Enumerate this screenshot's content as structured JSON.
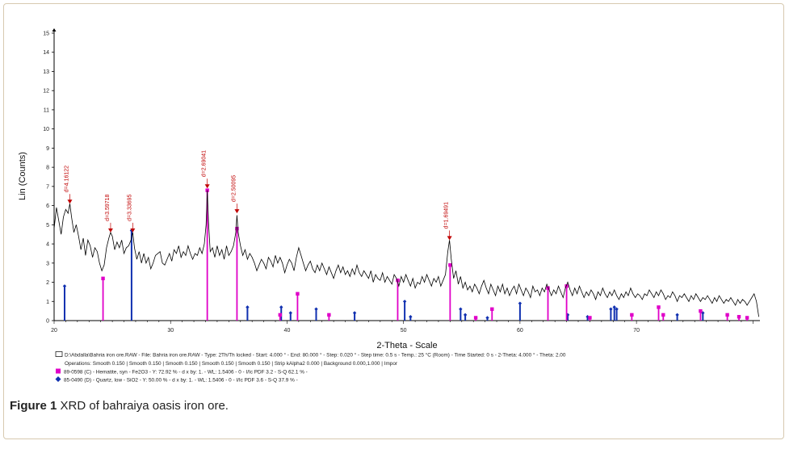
{
  "caption": {
    "label": "Figure 1",
    "text": " XRD of bahraiya oasis iron ore."
  },
  "colors": {
    "pattern": "#000000",
    "hematite": "#e000c8",
    "quartz": "#1030b0",
    "peak_marker": "#c00000"
  },
  "chart_data": {
    "type": "line",
    "xlabel": "2-Theta - Scale",
    "ylabel": "Lin (Counts)",
    "xlim": [
      20,
      80.6
    ],
    "ylim": [
      0,
      15
    ],
    "xticks": [
      20,
      30,
      40,
      50,
      60,
      70
    ],
    "yticks": [
      0,
      1,
      2,
      3,
      4,
      5,
      6,
      7,
      8,
      9,
      10,
      11,
      12,
      13,
      14,
      15
    ],
    "pattern_points": [
      [
        20.0,
        4.8
      ],
      [
        20.2,
        5.9
      ],
      [
        20.4,
        5.2
      ],
      [
        20.6,
        4.5
      ],
      [
        20.8,
        5.4
      ],
      [
        21.0,
        5.8
      ],
      [
        21.2,
        5.6
      ],
      [
        21.35,
        6.1
      ],
      [
        21.5,
        5.4
      ],
      [
        21.7,
        4.6
      ],
      [
        21.9,
        5.0
      ],
      [
        22.1,
        4.4
      ],
      [
        22.3,
        3.7
      ],
      [
        22.5,
        4.3
      ],
      [
        22.7,
        3.4
      ],
      [
        22.9,
        4.2
      ],
      [
        23.1,
        3.9
      ],
      [
        23.3,
        3.3
      ],
      [
        23.5,
        3.8
      ],
      [
        23.7,
        3.6
      ],
      [
        23.9,
        3.0
      ],
      [
        24.1,
        2.6
      ],
      [
        24.3,
        2.9
      ],
      [
        24.5,
        3.8
      ],
      [
        24.7,
        4.3
      ],
      [
        24.85,
        4.6
      ],
      [
        25.0,
        4.4
      ],
      [
        25.2,
        3.7
      ],
      [
        25.4,
        4.1
      ],
      [
        25.6,
        3.8
      ],
      [
        25.8,
        4.2
      ],
      [
        26.0,
        3.5
      ],
      [
        26.2,
        3.8
      ],
      [
        26.4,
        3.9
      ],
      [
        26.6,
        4.2
      ],
      [
        26.75,
        4.6
      ],
      [
        26.9,
        3.8
      ],
      [
        27.1,
        3.2
      ],
      [
        27.3,
        3.6
      ],
      [
        27.5,
        3.0
      ],
      [
        27.7,
        3.5
      ],
      [
        27.9,
        3.0
      ],
      [
        28.1,
        3.3
      ],
      [
        28.3,
        2.7
      ],
      [
        28.5,
        3.0
      ],
      [
        28.7,
        3.4
      ],
      [
        28.9,
        3.5
      ],
      [
        29.1,
        3.6
      ],
      [
        29.3,
        3.0
      ],
      [
        29.5,
        2.9
      ],
      [
        29.7,
        3.2
      ],
      [
        29.9,
        3.5
      ],
      [
        30.1,
        3.1
      ],
      [
        30.3,
        3.7
      ],
      [
        30.5,
        3.5
      ],
      [
        30.7,
        3.9
      ],
      [
        30.9,
        3.3
      ],
      [
        31.1,
        3.6
      ],
      [
        31.3,
        3.4
      ],
      [
        31.5,
        3.9
      ],
      [
        31.7,
        3.5
      ],
      [
        31.9,
        3.2
      ],
      [
        32.1,
        3.5
      ],
      [
        32.3,
        3.4
      ],
      [
        32.5,
        3.8
      ],
      [
        32.7,
        3.5
      ],
      [
        32.9,
        4.0
      ],
      [
        33.05,
        5.0
      ],
      [
        33.15,
        6.8
      ],
      [
        33.25,
        5.2
      ],
      [
        33.4,
        3.6
      ],
      [
        33.6,
        3.8
      ],
      [
        33.8,
        3.3
      ],
      [
        34.0,
        3.9
      ],
      [
        34.2,
        3.4
      ],
      [
        34.4,
        3.7
      ],
      [
        34.6,
        3.2
      ],
      [
        34.8,
        3.9
      ],
      [
        35.0,
        3.4
      ],
      [
        35.2,
        3.6
      ],
      [
        35.4,
        3.9
      ],
      [
        35.6,
        4.6
      ],
      [
        35.7,
        5.5
      ],
      [
        35.8,
        4.6
      ],
      [
        36.0,
        3.9
      ],
      [
        36.2,
        3.4
      ],
      [
        36.4,
        3.7
      ],
      [
        36.6,
        3.2
      ],
      [
        36.8,
        3.5
      ],
      [
        37.0,
        3.3
      ],
      [
        37.2,
        3.0
      ],
      [
        37.4,
        2.6
      ],
      [
        37.6,
        2.9
      ],
      [
        37.8,
        3.2
      ],
      [
        38.0,
        3.0
      ],
      [
        38.2,
        2.7
      ],
      [
        38.4,
        3.3
      ],
      [
        38.6,
        3.1
      ],
      [
        38.8,
        2.8
      ],
      [
        39.0,
        3.4
      ],
      [
        39.2,
        3.0
      ],
      [
        39.4,
        3.3
      ],
      [
        39.6,
        3.0
      ],
      [
        39.8,
        2.5
      ],
      [
        40.0,
        2.9
      ],
      [
        40.2,
        3.2
      ],
      [
        40.4,
        3.0
      ],
      [
        40.6,
        2.6
      ],
      [
        40.8,
        3.3
      ],
      [
        41.0,
        3.8
      ],
      [
        41.2,
        3.4
      ],
      [
        41.4,
        3.0
      ],
      [
        41.6,
        2.6
      ],
      [
        41.8,
        2.9
      ],
      [
        42.0,
        3.1
      ],
      [
        42.2,
        2.7
      ],
      [
        42.4,
        2.5
      ],
      [
        42.6,
        2.9
      ],
      [
        42.8,
        2.6
      ],
      [
        43.0,
        3.0
      ],
      [
        43.2,
        2.7
      ],
      [
        43.4,
        2.4
      ],
      [
        43.6,
        2.8
      ],
      [
        43.8,
        2.5
      ],
      [
        44.0,
        2.2
      ],
      [
        44.2,
        2.6
      ],
      [
        44.4,
        2.9
      ],
      [
        44.6,
        2.5
      ],
      [
        44.8,
        2.8
      ],
      [
        45.0,
        2.4
      ],
      [
        45.2,
        2.6
      ],
      [
        45.4,
        2.3
      ],
      [
        45.6,
        2.7
      ],
      [
        45.8,
        2.4
      ],
      [
        46.0,
        2.9
      ],
      [
        46.2,
        2.5
      ],
      [
        46.4,
        2.3
      ],
      [
        46.6,
        2.6
      ],
      [
        46.8,
        2.4
      ],
      [
        47.0,
        2.2
      ],
      [
        47.2,
        2.6
      ],
      [
        47.4,
        2.0
      ],
      [
        47.6,
        2.4
      ],
      [
        47.8,
        2.2
      ],
      [
        48.0,
        2.1
      ],
      [
        48.2,
        2.5
      ],
      [
        48.4,
        2.0
      ],
      [
        48.6,
        2.3
      ],
      [
        48.8,
        2.1
      ],
      [
        49.0,
        1.9
      ],
      [
        49.2,
        2.4
      ],
      [
        49.4,
        2.2
      ],
      [
        49.6,
        1.8
      ],
      [
        49.8,
        2.3
      ],
      [
        50.0,
        2.0
      ],
      [
        50.2,
        2.4
      ],
      [
        50.4,
        2.1
      ],
      [
        50.6,
        1.8
      ],
      [
        50.8,
        2.2
      ],
      [
        51.0,
        1.7
      ],
      [
        51.2,
        2.0
      ],
      [
        51.4,
        1.9
      ],
      [
        51.6,
        2.3
      ],
      [
        51.8,
        2.0
      ],
      [
        52.0,
        2.4
      ],
      [
        52.2,
        2.1
      ],
      [
        52.4,
        1.8
      ],
      [
        52.6,
        2.2
      ],
      [
        52.8,
        2.0
      ],
      [
        53.0,
        2.3
      ],
      [
        53.2,
        1.8
      ],
      [
        53.4,
        2.1
      ],
      [
        53.6,
        2.4
      ],
      [
        53.8,
        3.6
      ],
      [
        53.95,
        4.2
      ],
      [
        54.1,
        3.2
      ],
      [
        54.3,
        2.2
      ],
      [
        54.5,
        2.6
      ],
      [
        54.7,
        1.9
      ],
      [
        54.9,
        2.3
      ],
      [
        55.1,
        1.7
      ],
      [
        55.3,
        2.0
      ],
      [
        55.5,
        1.6
      ],
      [
        55.7,
        1.8
      ],
      [
        55.9,
        1.5
      ],
      [
        56.1,
        1.9
      ],
      [
        56.3,
        1.7
      ],
      [
        56.5,
        1.4
      ],
      [
        56.7,
        1.8
      ],
      [
        56.9,
        2.1
      ],
      [
        57.1,
        1.7
      ],
      [
        57.3,
        1.4
      ],
      [
        57.5,
        1.9
      ],
      [
        57.7,
        1.6
      ],
      [
        57.9,
        1.3
      ],
      [
        58.1,
        1.8
      ],
      [
        58.3,
        1.5
      ],
      [
        58.5,
        1.9
      ],
      [
        58.7,
        1.4
      ],
      [
        58.9,
        1.7
      ],
      [
        59.1,
        1.3
      ],
      [
        59.3,
        1.6
      ],
      [
        59.5,
        1.8
      ],
      [
        59.7,
        1.4
      ],
      [
        59.9,
        1.9
      ],
      [
        60.1,
        1.6
      ],
      [
        60.3,
        1.3
      ],
      [
        60.5,
        1.7
      ],
      [
        60.7,
        1.5
      ],
      [
        60.9,
        1.2
      ],
      [
        61.1,
        1.8
      ],
      [
        61.3,
        1.5
      ],
      [
        61.5,
        1.6
      ],
      [
        61.7,
        1.3
      ],
      [
        61.9,
        1.7
      ],
      [
        62.1,
        1.5
      ],
      [
        62.3,
        1.9
      ],
      [
        62.5,
        1.6
      ],
      [
        62.7,
        1.3
      ],
      [
        62.9,
        1.6
      ],
      [
        63.1,
        1.4
      ],
      [
        63.3,
        1.8
      ],
      [
        63.5,
        1.5
      ],
      [
        63.7,
        1.2
      ],
      [
        63.9,
        1.7
      ],
      [
        64.1,
        2.0
      ],
      [
        64.3,
        1.6
      ],
      [
        64.5,
        1.3
      ],
      [
        64.7,
        1.7
      ],
      [
        64.9,
        1.4
      ],
      [
        65.1,
        1.8
      ],
      [
        65.3,
        1.5
      ],
      [
        65.5,
        1.2
      ],
      [
        65.7,
        1.5
      ],
      [
        65.9,
        1.3
      ],
      [
        66.1,
        1.6
      ],
      [
        66.3,
        1.4
      ],
      [
        66.5,
        1.1
      ],
      [
        66.7,
        1.5
      ],
      [
        66.9,
        1.3
      ],
      [
        67.1,
        1.7
      ],
      [
        67.3,
        1.4
      ],
      [
        67.5,
        1.2
      ],
      [
        67.7,
        1.5
      ],
      [
        67.9,
        1.3
      ],
      [
        68.1,
        1.6
      ],
      [
        68.3,
        1.3
      ],
      [
        68.5,
        1.1
      ],
      [
        68.7,
        1.4
      ],
      [
        68.9,
        1.2
      ],
      [
        69.1,
        1.5
      ],
      [
        69.3,
        1.3
      ],
      [
        69.5,
        1.7
      ],
      [
        69.7,
        1.4
      ],
      [
        69.9,
        1.2
      ],
      [
        70.1,
        1.4
      ],
      [
        70.3,
        1.3
      ],
      [
        70.5,
        1.1
      ],
      [
        70.7,
        1.4
      ],
      [
        70.9,
        1.3
      ],
      [
        71.1,
        1.6
      ],
      [
        71.3,
        1.4
      ],
      [
        71.5,
        1.2
      ],
      [
        71.7,
        1.5
      ],
      [
        71.9,
        1.3
      ],
      [
        72.1,
        1.6
      ],
      [
        72.3,
        1.4
      ],
      [
        72.5,
        1.1
      ],
      [
        72.7,
        1.3
      ],
      [
        72.9,
        1.2
      ],
      [
        73.1,
        1.5
      ],
      [
        73.3,
        1.3
      ],
      [
        73.5,
        1.0
      ],
      [
        73.7,
        1.3
      ],
      [
        73.9,
        1.2
      ],
      [
        74.1,
        1.4
      ],
      [
        74.3,
        1.2
      ],
      [
        74.5,
        1.0
      ],
      [
        74.7,
        1.3
      ],
      [
        74.9,
        1.1
      ],
      [
        75.1,
        1.4
      ],
      [
        75.3,
        1.2
      ],
      [
        75.5,
        1.0
      ],
      [
        75.7,
        1.2
      ],
      [
        75.9,
        1.1
      ],
      [
        76.1,
        1.3
      ],
      [
        76.3,
        1.1
      ],
      [
        76.5,
        0.9
      ],
      [
        76.7,
        1.2
      ],
      [
        76.9,
        1.0
      ],
      [
        77.1,
        1.3
      ],
      [
        77.3,
        1.1
      ],
      [
        77.5,
        0.9
      ],
      [
        77.7,
        1.1
      ],
      [
        77.9,
        1.0
      ],
      [
        78.1,
        1.2
      ],
      [
        78.3,
        1.0
      ],
      [
        78.5,
        0.8
      ],
      [
        78.7,
        1.1
      ],
      [
        78.9,
        0.9
      ],
      [
        79.1,
        1.1
      ],
      [
        79.3,
        1.0
      ],
      [
        79.5,
        0.8
      ],
      [
        79.7,
        1.0
      ],
      [
        79.9,
        1.2
      ],
      [
        80.1,
        1.4
      ],
      [
        80.3,
        1.0
      ],
      [
        80.5,
        0.2
      ]
    ],
    "peak_labels": [
      {
        "x": 21.35,
        "y": 6.1,
        "text": "d=4.16122"
      },
      {
        "x": 24.85,
        "y": 4.6,
        "text": "d=3.59718"
      },
      {
        "x": 26.75,
        "y": 4.6,
        "text": "d=3.33695"
      },
      {
        "x": 33.15,
        "y": 6.9,
        "text": "d=2.69041"
      },
      {
        "x": 35.7,
        "y": 5.6,
        "text": "d=2.50095"
      },
      {
        "x": 53.95,
        "y": 4.2,
        "text": "d=1.69491"
      }
    ],
    "hematite_sticks": [
      [
        24.2,
        2.2
      ],
      [
        33.15,
        6.8
      ],
      [
        35.7,
        4.8
      ],
      [
        39.4,
        0.3
      ],
      [
        40.9,
        1.4
      ],
      [
        43.6,
        0.3
      ],
      [
        49.5,
        2.1
      ],
      [
        54.0,
        2.9
      ],
      [
        56.2,
        0.15
      ],
      [
        57.6,
        0.6
      ],
      [
        62.4,
        1.7
      ],
      [
        64.0,
        1.8
      ],
      [
        66.0,
        0.15
      ],
      [
        69.6,
        0.3
      ],
      [
        71.9,
        0.7
      ],
      [
        72.3,
        0.3
      ],
      [
        75.5,
        0.5
      ],
      [
        77.8,
        0.3
      ],
      [
        78.8,
        0.2
      ],
      [
        79.5,
        0.15
      ]
    ],
    "quartz_sticks": [
      [
        20.9,
        1.8
      ],
      [
        26.65,
        4.7
      ],
      [
        36.6,
        0.7
      ],
      [
        39.5,
        0.7
      ],
      [
        40.3,
        0.4
      ],
      [
        42.5,
        0.6
      ],
      [
        45.8,
        0.4
      ],
      [
        50.1,
        1.0
      ],
      [
        50.6,
        0.2
      ],
      [
        54.9,
        0.6
      ],
      [
        55.3,
        0.3
      ],
      [
        57.2,
        0.15
      ],
      [
        60.0,
        0.9
      ],
      [
        64.1,
        0.3
      ],
      [
        65.8,
        0.2
      ],
      [
        67.8,
        0.6
      ],
      [
        68.1,
        0.7
      ],
      [
        68.3,
        0.6
      ],
      [
        73.5,
        0.3
      ],
      [
        75.7,
        0.4
      ]
    ],
    "legend": [
      "D:\\Abdalla\\Bahria iron ore.RAW - File: Bahria iron ore.RAW - Type: 2Th/Th locked - Start: 4.000 ° - End: 80.000 ° - Step: 0.020 ° - Step time: 0.5 s - Temp.: 25 °C (Room) - Time Started: 0 s - 2-Theta: 4.000 ° - Theta: 2.00",
      "Operations: Smooth 0.150 | Smooth 0.150 | Smooth 0.150 | Smooth 0.150 | Smooth 0.150 | Strip kAlpha2 0.000 | Background 0.000,1.000 | Impor",
      "89-0598 (C) - Hematite, syn - Fe2O3 - Y: 72.92 % - d x by: 1. - WL: 1.5406 - 0 - I/Ic PDF 3.2 - S-Q 62.1 % -",
      "85-0490 (D) - Quartz, low - SiO2 - Y: 50.00 % - d x by: 1. - WL: 1.5406 - 0 - I/Ic PDF 3.6 - S-Q 37.9 % -"
    ]
  }
}
